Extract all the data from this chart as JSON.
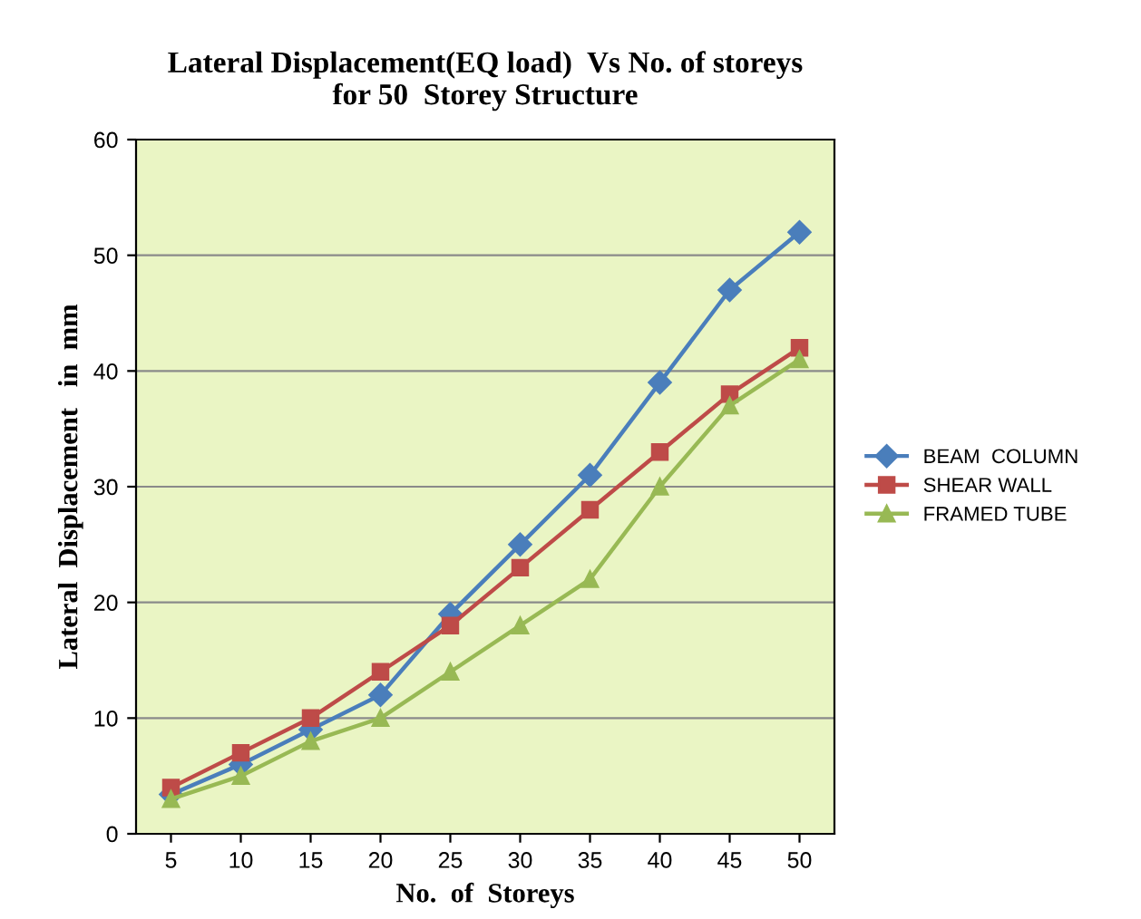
{
  "chart_data": {
    "type": "line",
    "title": "Lateral Displacement(EQ load)  Vs No. of storeys\nfor 50  Storey Structure",
    "xlabel": "No.  of  Storeys",
    "ylabel": "Lateral  Displacement   in  mm",
    "categories": [
      "5",
      "10",
      "15",
      "20",
      "25",
      "30",
      "35",
      "40",
      "45",
      "50"
    ],
    "series": [
      {
        "name": "BEAM  COLUMN",
        "color": "#4a7ebb",
        "marker": "diamond",
        "values": [
          3.4,
          6,
          9,
          12,
          19,
          25,
          31,
          39,
          47,
          52
        ]
      },
      {
        "name": "SHEAR WALL",
        "color": "#be4b48",
        "marker": "square",
        "values": [
          4,
          7,
          10,
          14,
          18,
          23,
          28,
          33,
          38,
          42
        ]
      },
      {
        "name": "FRAMED TUBE",
        "color": "#98b954",
        "marker": "triangle",
        "values": [
          3,
          5,
          8,
          10,
          14,
          18,
          22,
          30,
          37,
          41
        ]
      }
    ],
    "ylim": [
      0,
      60
    ],
    "yticks": [
      0,
      10,
      20,
      30,
      40,
      50,
      60
    ],
    "grid": "y",
    "legend": "right",
    "line_style": "solid"
  }
}
